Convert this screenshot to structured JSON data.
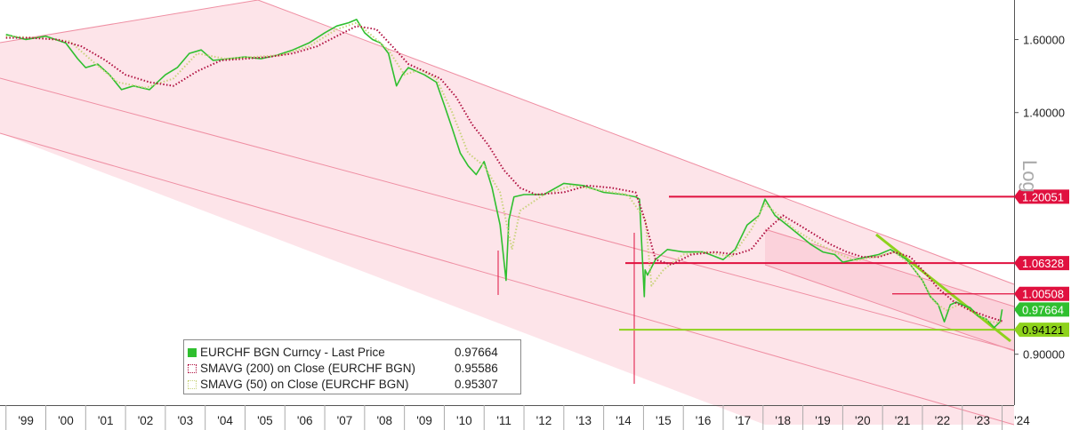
{
  "chart_data": {
    "type": "line",
    "series": [
      {
        "name": "EURCHF BGN Curncy - Last Price",
        "last_value": "0.97664",
        "color": "#2fbf2f",
        "x": [
          1999.0,
          1999.5,
          2000.0,
          2000.5,
          2000.8,
          2001.0,
          2001.3,
          2001.6,
          2001.9,
          2002.2,
          2002.6,
          2003.0,
          2003.3,
          2003.6,
          2003.9,
          2004.2,
          2004.6,
          2005.0,
          2005.4,
          2005.8,
          2006.2,
          2006.6,
          2007.0,
          2007.3,
          2007.6,
          2007.8,
          2007.9,
          2008.0,
          2008.2,
          2008.4,
          2008.6,
          2008.8,
          2008.95,
          2009.1,
          2009.3,
          2009.5,
          2009.8,
          2010.0,
          2010.2,
          2010.4,
          2010.6,
          2010.8,
          2011.0,
          2011.2,
          2011.4,
          2011.55,
          2011.62,
          2011.75,
          2012.0,
          2012.5,
          2013.0,
          2013.5,
          2014.0,
          2014.5,
          2014.8,
          2014.9,
          2015.02,
          2015.04,
          2015.1,
          2015.3,
          2015.6,
          2016.0,
          2016.5,
          2017.0,
          2017.3,
          2017.6,
          2017.9,
          2018.05,
          2018.3,
          2018.6,
          2018.9,
          2019.2,
          2019.5,
          2019.8,
          2020.0,
          2020.3,
          2020.6,
          2020.9,
          2021.2,
          2021.4,
          2021.6,
          2021.8,
          2022.0,
          2022.2,
          2022.4,
          2022.55,
          2022.7,
          2022.85,
          2023.0,
          2023.2,
          2023.4,
          2023.6,
          2023.8,
          2023.95,
          2024.0
        ],
        "values": [
          1.615,
          1.6,
          1.61,
          1.59,
          1.545,
          1.52,
          1.53,
          1.5,
          1.46,
          1.47,
          1.46,
          1.5,
          1.52,
          1.56,
          1.57,
          1.54,
          1.545,
          1.55,
          1.545,
          1.555,
          1.57,
          1.59,
          1.62,
          1.64,
          1.65,
          1.66,
          1.64,
          1.62,
          1.6,
          1.59,
          1.56,
          1.47,
          1.5,
          1.52,
          1.51,
          1.5,
          1.48,
          1.42,
          1.36,
          1.3,
          1.27,
          1.25,
          1.28,
          1.22,
          1.14,
          1.03,
          1.15,
          1.2,
          1.205,
          1.205,
          1.23,
          1.225,
          1.21,
          1.205,
          1.2,
          1.195,
          1.0,
          1.05,
          1.04,
          1.07,
          1.09,
          1.085,
          1.085,
          1.07,
          1.09,
          1.14,
          1.16,
          1.195,
          1.16,
          1.14,
          1.12,
          1.1,
          1.085,
          1.08,
          1.065,
          1.07,
          1.075,
          1.08,
          1.09,
          1.08,
          1.07,
          1.05,
          1.03,
          1.0,
          0.985,
          0.955,
          0.985,
          0.99,
          0.985,
          0.98,
          0.965,
          0.96,
          0.945,
          0.955,
          0.977
        ]
      },
      {
        "name": "SMAVG (200)  on Close (EURCHF BGN)",
        "last_value": "0.95586",
        "color": "#b01040",
        "x": [
          1999.0,
          1999.6,
          2000.3,
          2000.9,
          2001.5,
          2002.0,
          2002.6,
          2003.2,
          2003.8,
          2004.4,
          2005.0,
          2005.6,
          2006.2,
          2006.8,
          2007.3,
          2007.8,
          2008.3,
          2008.7,
          2009.1,
          2009.5,
          2009.9,
          2010.3,
          2010.7,
          2011.1,
          2011.5,
          2011.9,
          2012.3,
          2013.0,
          2013.6,
          2014.2,
          2014.8,
          2015.0,
          2015.3,
          2015.7,
          2016.2,
          2016.8,
          2017.3,
          2017.7,
          2018.1,
          2018.5,
          2018.9,
          2019.3,
          2019.7,
          2020.1,
          2020.5,
          2020.9,
          2021.3,
          2021.7,
          2022.0,
          2022.4,
          2022.8,
          2023.2,
          2023.6,
          2024.0
        ],
        "values": [
          1.605,
          1.605,
          1.6,
          1.58,
          1.54,
          1.5,
          1.48,
          1.47,
          1.51,
          1.54,
          1.545,
          1.55,
          1.56,
          1.58,
          1.61,
          1.64,
          1.63,
          1.58,
          1.53,
          1.51,
          1.49,
          1.44,
          1.37,
          1.32,
          1.26,
          1.22,
          1.205,
          1.21,
          1.225,
          1.22,
          1.21,
          1.16,
          1.07,
          1.06,
          1.08,
          1.085,
          1.08,
          1.09,
          1.13,
          1.16,
          1.14,
          1.12,
          1.1,
          1.085,
          1.075,
          1.075,
          1.085,
          1.075,
          1.05,
          1.015,
          0.99,
          0.975,
          0.965,
          0.956
        ]
      },
      {
        "name": "SMAVG (50)  on Close (EURCHF BGN)",
        "last_value": "0.95307",
        "color": "#c8d27a",
        "x": [
          1999.0,
          1999.8,
          2000.6,
          2001.2,
          2001.8,
          2002.5,
          2003.2,
          2003.8,
          2004.5,
          2005.2,
          2005.9,
          2006.6,
          2007.3,
          2007.8,
          2008.2,
          2008.6,
          2009.0,
          2009.4,
          2009.8,
          2010.2,
          2010.6,
          2011.0,
          2011.4,
          2011.7,
          2011.9,
          2012.5,
          2013.2,
          2013.9,
          2014.6,
          2015.05,
          2015.2,
          2015.5,
          2016.0,
          2016.6,
          2017.2,
          2017.7,
          2018.05,
          2018.4,
          2018.8,
          2019.3,
          2019.8,
          2020.3,
          2020.8,
          2021.3,
          2021.7,
          2022.0,
          2022.3,
          2022.6,
          2022.9,
          2023.3,
          2023.7,
          2024.0
        ],
        "values": [
          1.61,
          1.605,
          1.595,
          1.535,
          1.48,
          1.465,
          1.49,
          1.56,
          1.545,
          1.55,
          1.555,
          1.58,
          1.63,
          1.65,
          1.61,
          1.57,
          1.5,
          1.515,
          1.49,
          1.4,
          1.3,
          1.27,
          1.21,
          1.09,
          1.17,
          1.205,
          1.225,
          1.215,
          1.205,
          1.15,
          1.02,
          1.05,
          1.08,
          1.085,
          1.075,
          1.13,
          1.185,
          1.16,
          1.13,
          1.105,
          1.085,
          1.068,
          1.075,
          1.085,
          1.06,
          1.03,
          0.99,
          0.975,
          0.985,
          0.972,
          0.955,
          0.953
        ]
      }
    ],
    "reference_levels": [
      {
        "value": 1.20051,
        "label": "1.20051",
        "color": "#e0113f"
      },
      {
        "value": 1.06328,
        "label": "1.06328",
        "color": "#e0113f"
      },
      {
        "value": 1.00508,
        "label": "1.00508",
        "color": "#e0113f"
      },
      {
        "value": 0.97664,
        "label": "0.97664",
        "color": "#2fbf2f"
      },
      {
        "value": 0.94121,
        "label": "0.94121",
        "color": "#8ed21c"
      }
    ],
    "x_tick_labels": [
      "'99",
      "'00",
      "'01",
      "'02",
      "'03",
      "'04",
      "'05",
      "'06",
      "'07",
      "'08",
      "'09",
      "'10",
      "'11",
      "'12",
      "'13",
      "'14",
      "'15",
      "'16",
      "'17",
      "'18",
      "'19",
      "'20",
      "'21",
      "'22",
      "'23",
      "'24"
    ],
    "y_tick_labels": [
      "1.60000",
      "1.40000",
      "0.90000"
    ],
    "y_ticks": [
      1.6,
      1.4,
      0.9
    ],
    "y_scale": "log",
    "ylabel": "Log",
    "xlim": [
      1998.85,
      2024.3
    ],
    "ylim": [
      0.82,
      1.72
    ],
    "legend_position": "bottom-left",
    "grid": false
  },
  "legend": {
    "items": [
      {
        "label": "EURCHF BGN Curncy - Last Price",
        "value": "0.97664"
      },
      {
        "label": "SMAVG (200)  on Close (EURCHF BGN)",
        "value": "0.95586"
      },
      {
        "label": "SMAVG (50)  on Close (EURCHF BGN)",
        "value": "0.95307"
      }
    ]
  }
}
